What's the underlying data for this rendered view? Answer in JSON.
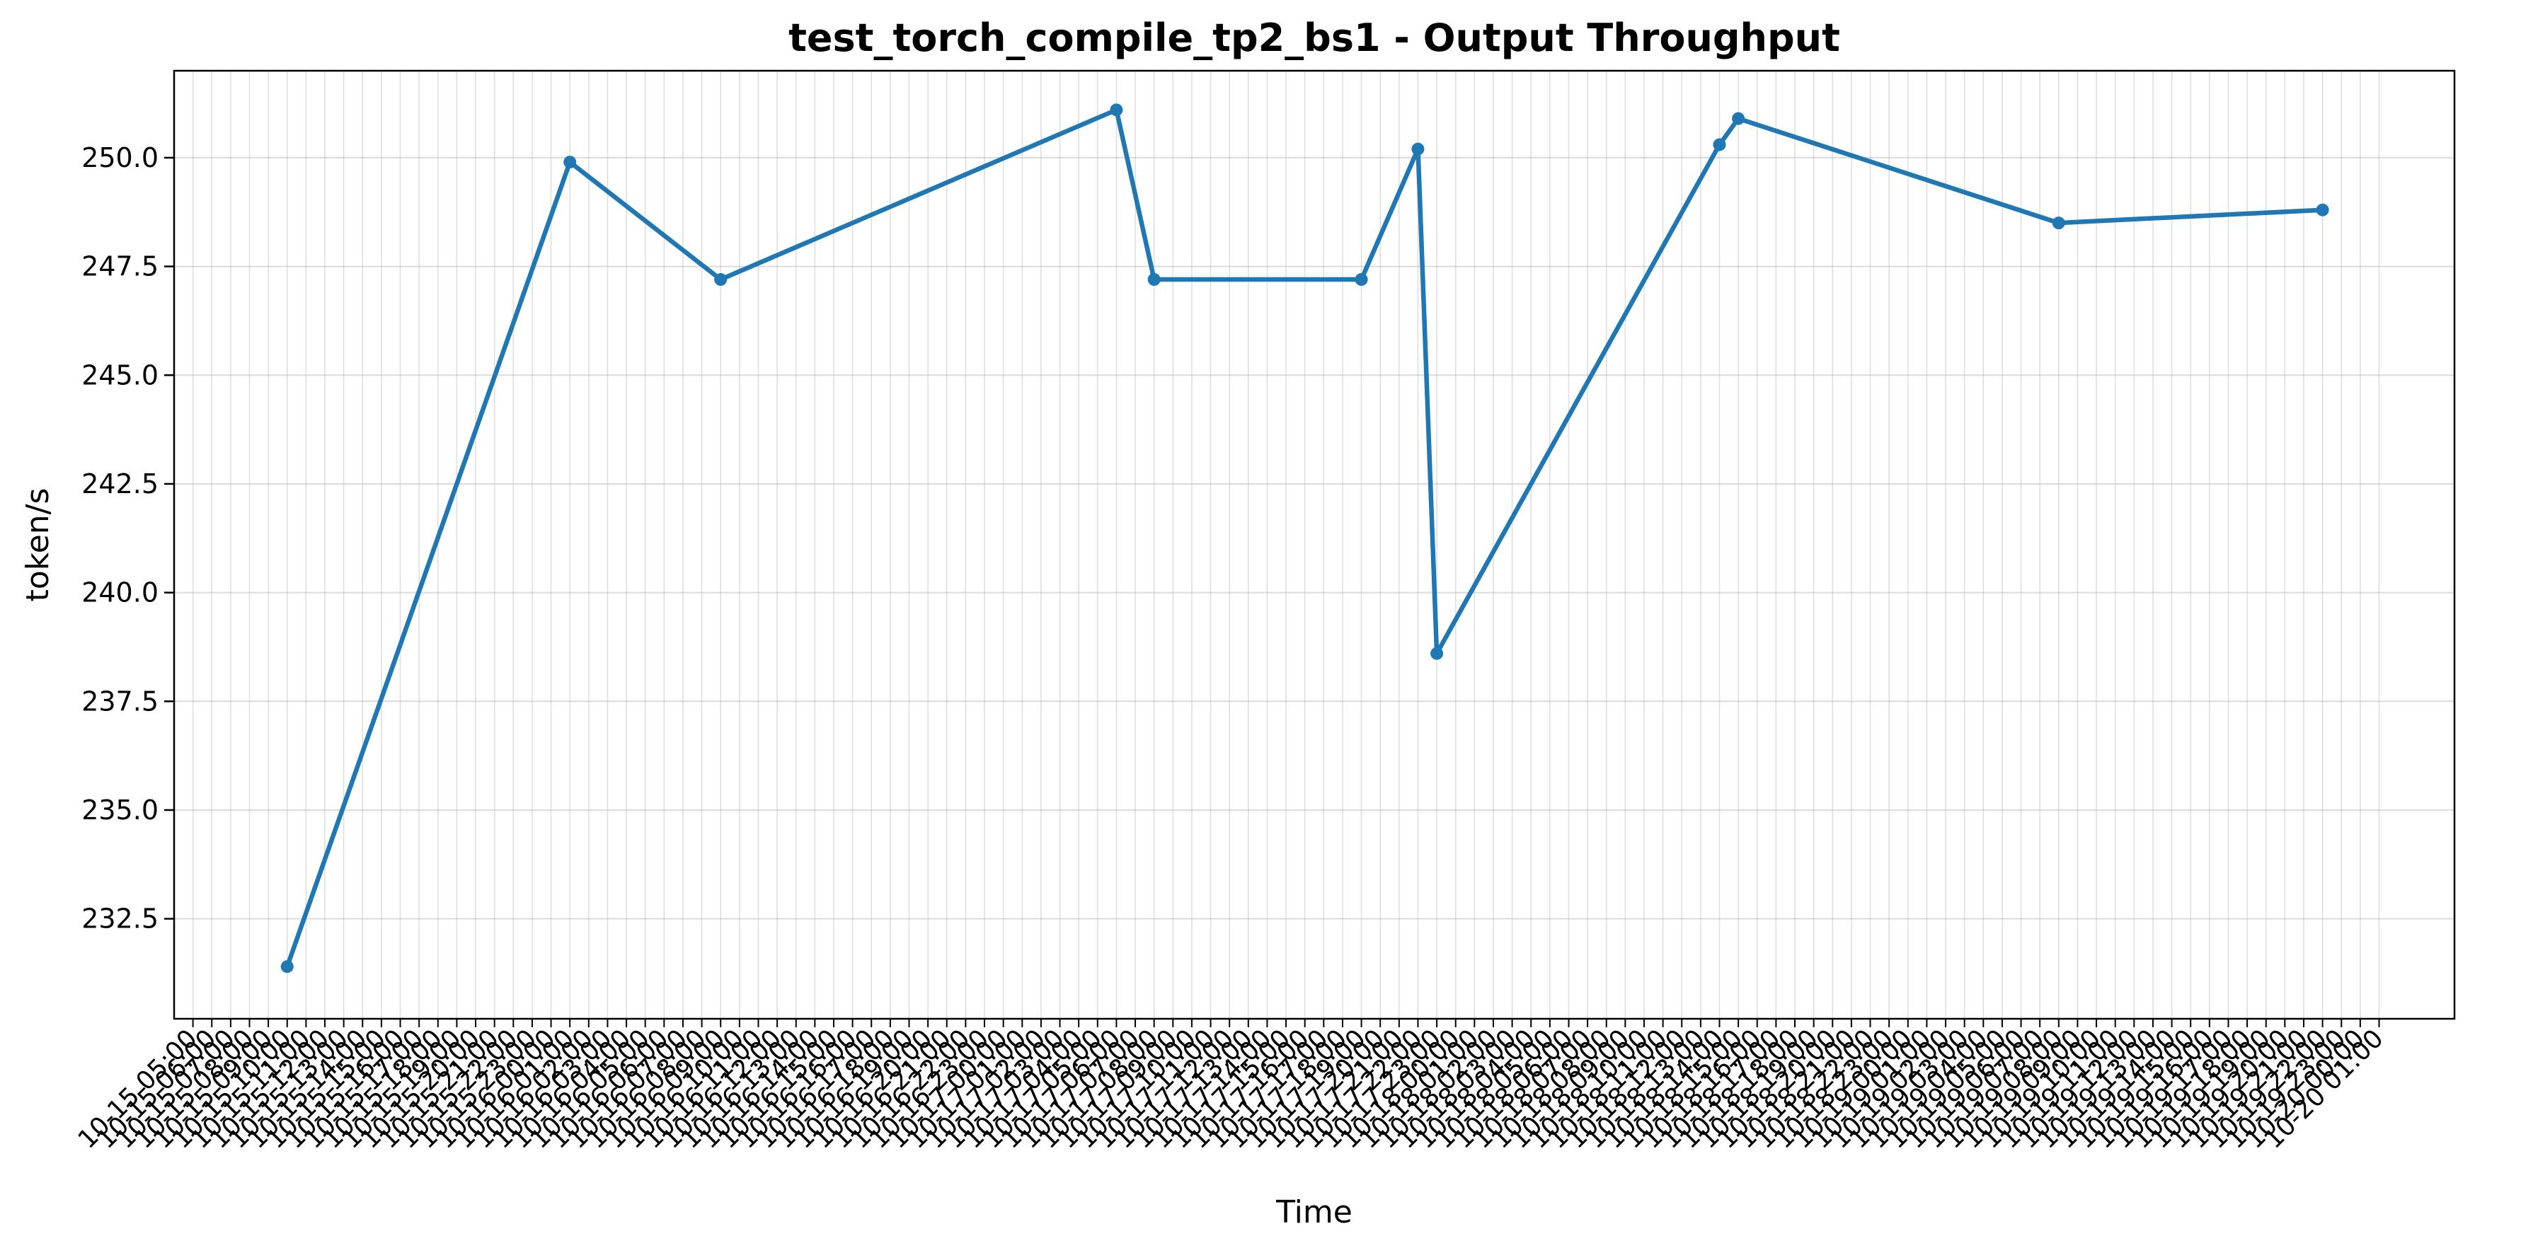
{
  "chart_data": {
    "type": "line",
    "title": "test_torch_compile_tp2_bs1 - Output Throughput",
    "xlabel": "Time",
    "ylabel": "token/s",
    "ylim": [
      230.2,
      252.0
    ],
    "yticks": [
      232.5,
      235.0,
      237.5,
      240.0,
      242.5,
      245.0,
      247.5,
      250.0
    ],
    "xlim": [
      "10-15 04:00",
      "10-20 05:00"
    ],
    "xtick_step_hours": 1,
    "xtick_first": "10-15 05:00",
    "xtick_last": "10-20 01:00",
    "grid": true,
    "legend": "none",
    "series_color": "#1f77b4",
    "series": [
      {
        "points": [
          {
            "x": "10-15 10:00",
            "y": 231.4
          },
          {
            "x": "10-16 01:00",
            "y": 249.9
          },
          {
            "x": "10-16 09:00",
            "y": 247.2
          },
          {
            "x": "10-17 06:00",
            "y": 251.1
          },
          {
            "x": "10-17 08:00",
            "y": 247.2
          },
          {
            "x": "10-17 19:00",
            "y": 247.2
          },
          {
            "x": "10-17 22:00",
            "y": 250.2
          },
          {
            "x": "10-17 23:00",
            "y": 238.6
          },
          {
            "x": "10-18 14:00",
            "y": 250.3
          },
          {
            "x": "10-18 15:00",
            "y": 250.9
          },
          {
            "x": "10-19 08:00",
            "y": 248.5
          },
          {
            "x": "10-19 22:00",
            "y": 248.8
          }
        ]
      }
    ]
  }
}
